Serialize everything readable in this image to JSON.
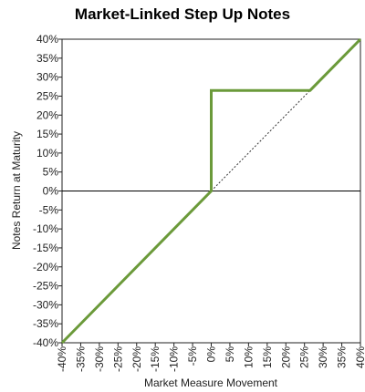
{
  "chart_data": {
    "type": "line",
    "title": "Market-Linked Step Up Notes",
    "xlabel": "Market Measure Movement",
    "ylabel": "Notes Return at Maturity",
    "xlim": [
      -40,
      40
    ],
    "ylim": [
      -40,
      40
    ],
    "x_ticks": [
      "-40%",
      "-35%",
      "-30%",
      "-25%",
      "-20%",
      "-15%",
      "-10%",
      "-5%",
      "0%",
      "5%",
      "10%",
      "15%",
      "20%",
      "25%",
      "30%",
      "35%",
      "40%"
    ],
    "y_ticks": [
      "40%",
      "35%",
      "30%",
      "25%",
      "20%",
      "15%",
      "10%",
      "5%",
      "0%",
      "-5%",
      "-10%",
      "-15%",
      "-20%",
      "-25%",
      "-30%",
      "-35%",
      "-40%"
    ],
    "series": [
      {
        "style": "solid",
        "color": "#6b9a3a",
        "points": [
          [
            -40,
            -40
          ],
          [
            0,
            0
          ],
          [
            0,
            26.5
          ],
          [
            26.5,
            26.5
          ],
          [
            40,
            40
          ]
        ]
      },
      {
        "style": "dotted",
        "color": "#333333",
        "points": [
          [
            0,
            0
          ],
          [
            26.5,
            26.5
          ]
        ]
      }
    ],
    "grid": false,
    "legend": "none"
  }
}
